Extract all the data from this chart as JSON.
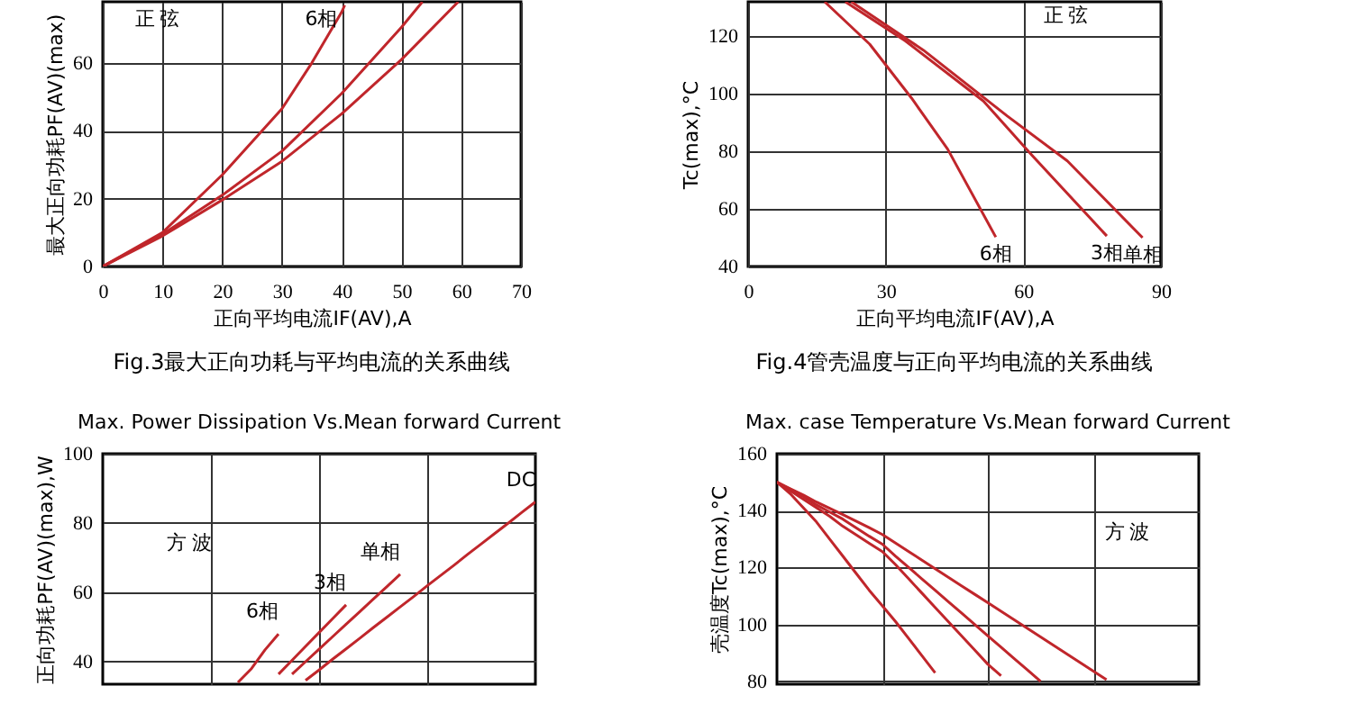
{
  "chart_data": [
    {
      "type": "line",
      "title": "Fig.3最大正向功耗与平均电流的关系曲线",
      "xlabel": "正向平均电流IF(AV),A",
      "ylabel": "最大正向功耗PF(AV)(max)",
      "xlim": [
        0,
        70
      ],
      "xticks": [
        0,
        10,
        20,
        30,
        40,
        50,
        60,
        70
      ],
      "ylim": [
        0,
        78
      ],
      "yticks": [
        0,
        20,
        40,
        60
      ],
      "grid": true,
      "legend": false,
      "annotations": [
        "正 弦"
      ],
      "series": [
        {
          "name": "6相",
          "color": "#c0262b",
          "x": [
            0,
            10,
            20,
            30,
            35,
            40,
            40.5
          ],
          "values": [
            0,
            10,
            27,
            46.5,
            60,
            75,
            77
          ]
        },
        {
          "color": "#c0262b",
          "x": [
            0,
            10,
            20,
            30,
            40,
            50,
            53.5
          ],
          "values": [
            0,
            9.5,
            21,
            34,
            51,
            70.5,
            78
          ]
        },
        {
          "color": "#c0262b",
          "x": [
            0,
            10,
            20,
            30,
            40,
            50,
            59.5
          ],
          "values": [
            0,
            9,
            19.6,
            31,
            45,
            61,
            78
          ]
        }
      ]
    },
    {
      "type": "line",
      "title": "Fig.4管壳温度与正向平均电流的关系曲线",
      "xlabel": "正向平均电流IF(AV),A",
      "ylabel": "Tc(max),°C",
      "xlim": [
        0,
        90
      ],
      "xticks": [
        0,
        30,
        60,
        90
      ],
      "ylim": [
        40,
        132
      ],
      "yticks": [
        40,
        60,
        80,
        100,
        120
      ],
      "grid": true,
      "legend": false,
      "annotations": [
        "正 弦"
      ],
      "series": [
        {
          "name": "6相",
          "color": "#c0262b",
          "x": [
            16.7,
            26.5,
            35.6,
            43.5,
            54
          ],
          "values": [
            132,
            117.3,
            98.6,
            80.8,
            50.2
          ]
        },
        {
          "name": "3相",
          "color": "#c0262b",
          "x": [
            21.2,
            34.3,
            51.3,
            61.8,
            78.2
          ],
          "values": [
            132,
            118.4,
            97.5,
            78.8,
            50.6
          ]
        },
        {
          "name": "单相",
          "color": "#c0262b",
          "x": [
            22.5,
            38.2,
            56.5,
            69.6,
            86
          ],
          "values": [
            132,
            115.2,
            92.3,
            76.7,
            50
          ]
        }
      ]
    },
    {
      "type": "line",
      "title": "Max. Power Dissipation Vs.Mean forward Current",
      "ylabel": "正向功耗PF(AV)(max),W",
      "categories": [
        null,
        null,
        null,
        null,
        null,
        null,
        null,
        null,
        null,
        null,
        null,
        null,
        null,
        null,
        null,
        null,
        null,
        null,
        null,
        null,
        null,
        null,
        null,
        null,
        null,
        null,
        null,
        null,
        null,
        null,
        null,
        null,
        null
      ],
      "ylim": [
        33.5,
        100
      ],
      "yticks": [
        40,
        60,
        80,
        100
      ],
      "tick_labels": "y",
      "grid": true,
      "legend": false,
      "annotations": [
        "方 波"
      ],
      "series": [
        {
          "name": "6相",
          "color": "#c0262b",
          "values": [
            null,
            null,
            null,
            null,
            null,
            null,
            null,
            null,
            null,
            null,
            34,
            38,
            43.4,
            48,
            null,
            null,
            null,
            null,
            null,
            null,
            null,
            null,
            null,
            null,
            null,
            null,
            null,
            null,
            null,
            null,
            null,
            null,
            null
          ]
        },
        {
          "name": "3相",
          "color": "#c0262b",
          "values": [
            null,
            null,
            null,
            null,
            null,
            null,
            null,
            null,
            null,
            null,
            null,
            null,
            null,
            36.4,
            40.4,
            44.4,
            48.4,
            52.4,
            56.4,
            null,
            null,
            null,
            null,
            null,
            null,
            null,
            null,
            null,
            null,
            null,
            null,
            null,
            null
          ]
        },
        {
          "name": "单相",
          "color": "#c0262b",
          "values": [
            null,
            null,
            null,
            null,
            null,
            null,
            null,
            null,
            null,
            null,
            null,
            null,
            null,
            null,
            36.4,
            40,
            43.6,
            47.2,
            50.8,
            54.4,
            58,
            61.6,
            65.2,
            null,
            null,
            null,
            null,
            null,
            null,
            null,
            null,
            null,
            null
          ]
        },
        {
          "name": "DC",
          "color": "#c0262b",
          "values": [
            null,
            null,
            null,
            null,
            null,
            null,
            null,
            null,
            null,
            null,
            null,
            null,
            null,
            null,
            null,
            34.6,
            37.6,
            40.7,
            43.7,
            46.7,
            49.8,
            52.8,
            55.8,
            58.8,
            61.9,
            64.9,
            67.9,
            71,
            74,
            77,
            80,
            83.1,
            86.1
          ]
        }
      ]
    },
    {
      "type": "line",
      "title": "Max. case Temperature Vs.Mean forward Current",
      "ylabel": "壳温度Tc(max),°C",
      "categories": [
        null,
        null,
        null,
        null,
        null,
        null,
        null,
        null,
        null,
        null,
        null,
        null,
        null,
        null,
        null,
        null,
        null,
        null,
        null,
        null,
        null,
        null,
        null,
        null,
        null,
        null,
        null,
        null,
        null,
        null,
        null,
        null,
        null
      ],
      "ylim": [
        79,
        160
      ],
      "yticks": [
        80,
        100,
        120,
        140,
        160
      ],
      "tick_labels": "y",
      "grid": true,
      "legend": false,
      "annotations": [
        "方 波"
      ],
      "series": [
        {
          "color": "#c0262b",
          "values": [
            150,
            146,
            141,
            136,
            130,
            124,
            118,
            112,
            106.5,
            101,
            95,
            89,
            83,
            null,
            null,
            null,
            null,
            null,
            null,
            null,
            null,
            null,
            null,
            null,
            null,
            null,
            null,
            null,
            null,
            null,
            null,
            null,
            null
          ]
        },
        {
          "color": "#c0262b",
          "values": [
            150,
            147,
            144,
            141,
            138,
            134.5,
            131.5,
            128.5,
            125.6,
            121,
            116,
            111,
            106,
            101,
            96,
            91,
            86,
            82,
            null,
            null,
            null,
            null,
            null,
            null,
            null,
            null,
            null,
            null,
            null,
            null,
            null,
            null,
            null
          ]
        },
        {
          "color": "#c0262b",
          "values": [
            150,
            147.5,
            145,
            142,
            139.5,
            137,
            134,
            131,
            128.2,
            124,
            120,
            116,
            112,
            108,
            104,
            100,
            96,
            92,
            88,
            84,
            80,
            null,
            null,
            null,
            null,
            null,
            null,
            null,
            null,
            null,
            null,
            null,
            null
          ]
        },
        {
          "color": "#c0262b",
          "values": [
            150,
            147.7,
            145.5,
            143,
            140.8,
            138.6,
            136.3,
            134,
            131.6,
            128.6,
            125.6,
            122.6,
            119.6,
            116.6,
            113.6,
            110.6,
            107.6,
            104.6,
            101.6,
            98.6,
            95.6,
            92.6,
            89.6,
            86.6,
            83.6,
            80.6,
            null,
            null,
            null,
            null,
            null,
            null,
            null
          ]
        }
      ]
    }
  ]
}
